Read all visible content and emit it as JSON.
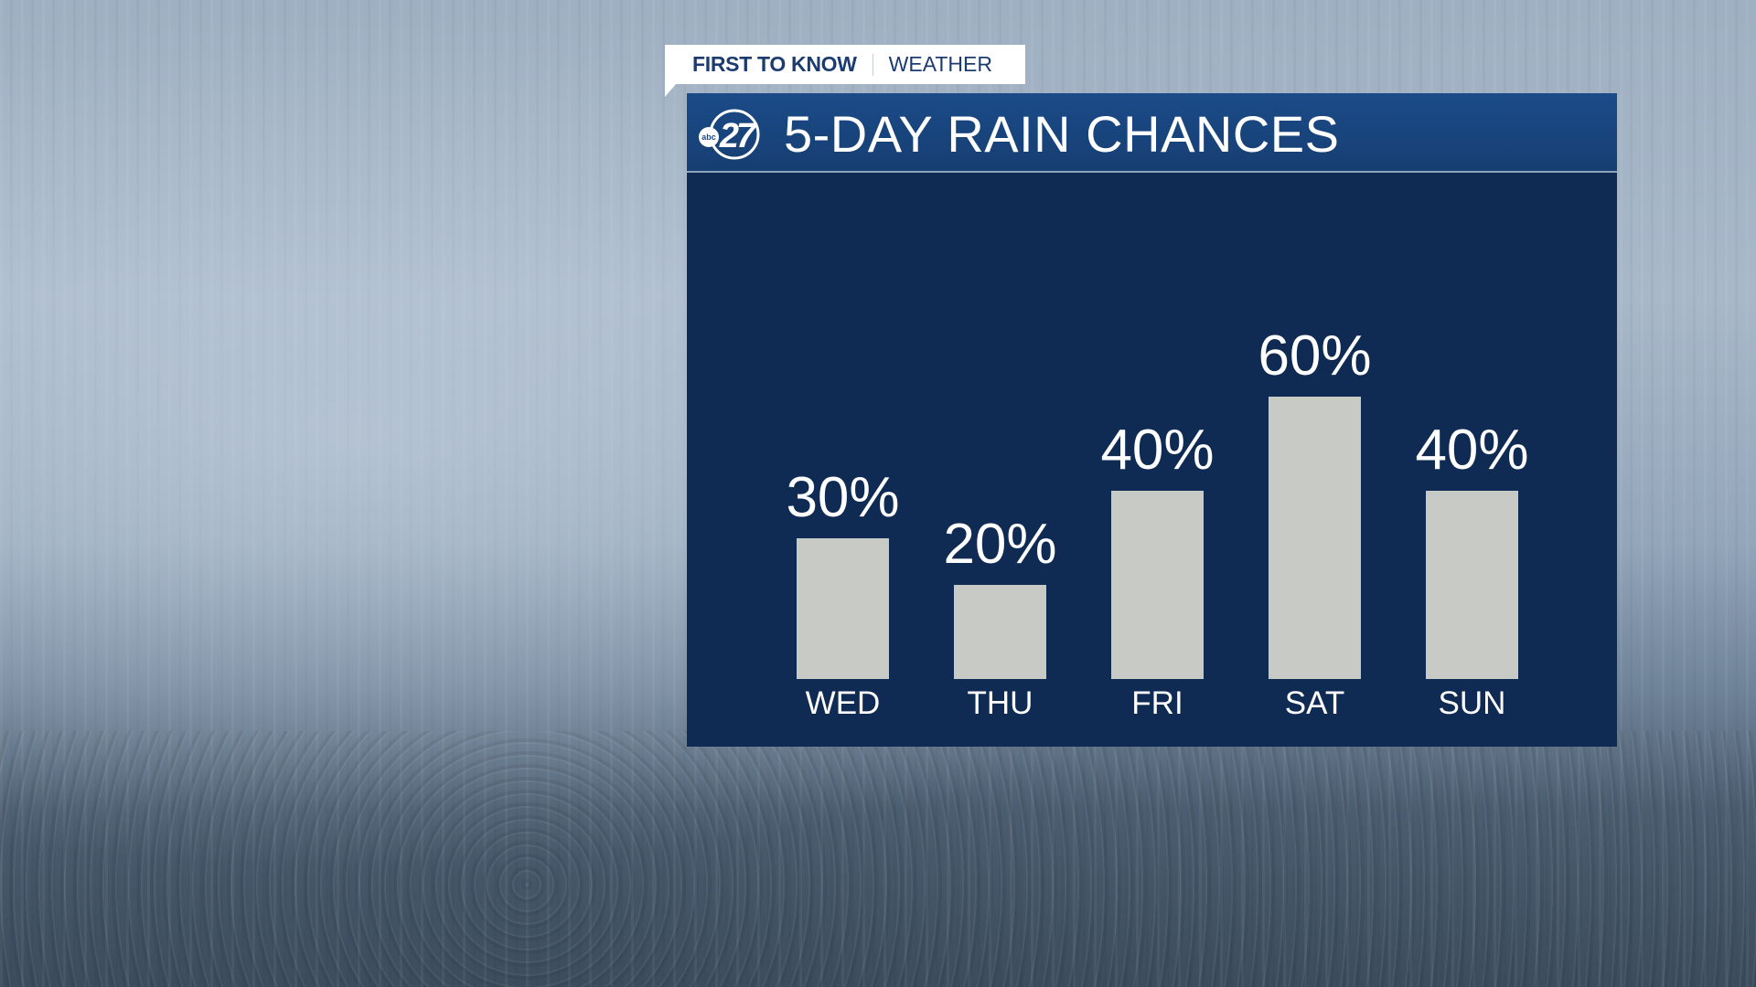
{
  "tag": {
    "brand": "FIRST TO KNOW",
    "section": "WEATHER"
  },
  "logo": {
    "text": "abc 27"
  },
  "colors": {
    "panel": "#0f2b54",
    "header": "#1b4b88",
    "bar": "#c8cac6",
    "text": "#ffffff"
  },
  "chart_data": {
    "type": "bar",
    "title": "5-DAY RAIN CHANCES",
    "categories": [
      "WED",
      "THU",
      "FRI",
      "SAT",
      "SUN"
    ],
    "values": [
      30,
      20,
      40,
      60,
      40
    ],
    "labels": [
      "30%",
      "20%",
      "40%",
      "60%",
      "40%"
    ],
    "unit": "%",
    "ylim": [
      0,
      100
    ],
    "grid": false
  }
}
